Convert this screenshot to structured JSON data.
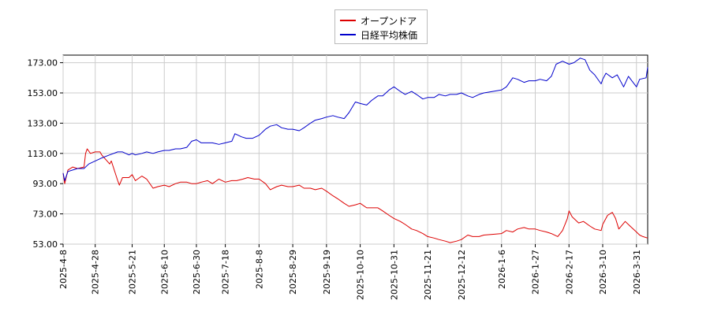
{
  "chart_data": {
    "type": "line",
    "title": "",
    "xlabel": "",
    "ylabel": "",
    "ylim": [
      53,
      178
    ],
    "yticks": [
      "173.00",
      "153.00",
      "133.00",
      "113.00",
      "93.00",
      "73.00",
      "53.00"
    ],
    "xticks": [
      "2025-4-8",
      "2025-4-28",
      "2025-5-21",
      "2025-6-10",
      "2025-6-30",
      "2025-7-18",
      "2025-8-8",
      "2025-8-29",
      "2025-9-19",
      "2025-10-10",
      "2025-10-31",
      "2025-11-21",
      "2025-12-12",
      "2026-1-6",
      "2026-1-27",
      "2026-2-17",
      "2026-3-10",
      "2026-3-31"
    ],
    "grid": true,
    "legend_position": "top-center",
    "series": [
      {
        "name": "オープンドア",
        "color": "#dd0000",
        "points": [
          [
            "2025-04-08",
            100
          ],
          [
            "2025-04-09",
            93
          ],
          [
            "2025-04-11",
            102
          ],
          [
            "2025-04-14",
            104
          ],
          [
            "2025-04-17",
            103
          ],
          [
            "2025-04-21",
            104
          ],
          [
            "2025-04-22",
            113
          ],
          [
            "2025-04-23",
            116
          ],
          [
            "2025-04-25",
            113
          ],
          [
            "2025-04-28",
            114
          ],
          [
            "2025-05-01",
            114
          ],
          [
            "2025-05-02",
            112
          ],
          [
            "2025-05-07",
            106
          ],
          [
            "2025-05-08",
            108
          ],
          [
            "2025-05-12",
            95
          ],
          [
            "2025-05-13",
            92
          ],
          [
            "2025-05-15",
            97
          ],
          [
            "2025-05-19",
            97
          ],
          [
            "2025-05-21",
            99
          ],
          [
            "2025-05-23",
            95
          ],
          [
            "2025-05-27",
            98
          ],
          [
            "2025-05-30",
            96
          ],
          [
            "2025-06-03",
            90
          ],
          [
            "2025-06-06",
            91
          ],
          [
            "2025-06-10",
            92
          ],
          [
            "2025-06-13",
            91
          ],
          [
            "2025-06-17",
            93
          ],
          [
            "2025-06-20",
            94
          ],
          [
            "2025-06-24",
            94
          ],
          [
            "2025-06-27",
            93
          ],
          [
            "2025-06-30",
            93
          ],
          [
            "2025-07-03",
            94
          ],
          [
            "2025-07-07",
            95
          ],
          [
            "2025-07-10",
            93
          ],
          [
            "2025-07-14",
            96
          ],
          [
            "2025-07-18",
            94
          ],
          [
            "2025-07-22",
            95
          ],
          [
            "2025-07-25",
            95
          ],
          [
            "2025-07-29",
            96
          ],
          [
            "2025-08-01",
            97
          ],
          [
            "2025-08-05",
            96
          ],
          [
            "2025-08-08",
            96
          ],
          [
            "2025-08-12",
            93
          ],
          [
            "2025-08-15",
            89
          ],
          [
            "2025-08-19",
            91
          ],
          [
            "2025-08-22",
            92
          ],
          [
            "2025-08-26",
            91
          ],
          [
            "2025-08-29",
            91
          ],
          [
            "2025-09-02",
            92
          ],
          [
            "2025-09-05",
            90
          ],
          [
            "2025-09-09",
            90
          ],
          [
            "2025-09-12",
            89
          ],
          [
            "2025-09-16",
            90
          ],
          [
            "2025-09-19",
            88
          ],
          [
            "2025-09-23",
            85
          ],
          [
            "2025-09-26",
            83
          ],
          [
            "2025-09-30",
            80
          ],
          [
            "2025-10-03",
            78
          ],
          [
            "2025-10-07",
            79
          ],
          [
            "2025-10-10",
            80
          ],
          [
            "2025-10-14",
            77
          ],
          [
            "2025-10-17",
            77
          ],
          [
            "2025-10-21",
            77
          ],
          [
            "2025-10-24",
            75
          ],
          [
            "2025-10-28",
            72
          ],
          [
            "2025-10-31",
            70
          ],
          [
            "2025-11-04",
            68
          ],
          [
            "2025-11-07",
            66
          ],
          [
            "2025-11-11",
            63
          ],
          [
            "2025-11-14",
            62
          ],
          [
            "2025-11-18",
            60
          ],
          [
            "2025-11-21",
            58
          ],
          [
            "2025-11-25",
            57
          ],
          [
            "2025-11-28",
            56
          ],
          [
            "2025-12-02",
            55
          ],
          [
            "2025-12-05",
            54
          ],
          [
            "2025-12-09",
            55
          ],
          [
            "2025-12-12",
            56
          ],
          [
            "2025-12-16",
            59
          ],
          [
            "2025-12-19",
            58
          ],
          [
            "2025-12-23",
            58
          ],
          [
            "2025-12-26",
            59
          ],
          [
            "2026-01-06",
            60
          ],
          [
            "2026-01-09",
            62
          ],
          [
            "2026-01-13",
            61
          ],
          [
            "2026-01-16",
            63
          ],
          [
            "2026-01-20",
            64
          ],
          [
            "2026-01-23",
            63
          ],
          [
            "2026-01-27",
            63
          ],
          [
            "2026-01-30",
            62
          ],
          [
            "2026-02-03",
            61
          ],
          [
            "2026-02-06",
            60
          ],
          [
            "2026-02-10",
            58
          ],
          [
            "2026-02-13",
            62
          ],
          [
            "2026-02-16",
            70
          ],
          [
            "2026-02-17",
            75
          ],
          [
            "2026-02-19",
            71
          ],
          [
            "2026-02-23",
            67
          ],
          [
            "2026-02-26",
            68
          ],
          [
            "2026-03-02",
            65
          ],
          [
            "2026-03-05",
            63
          ],
          [
            "2026-03-09",
            62
          ],
          [
            "2026-03-10",
            66
          ],
          [
            "2026-03-13",
            72
          ],
          [
            "2026-03-16",
            74
          ],
          [
            "2026-03-18",
            70
          ],
          [
            "2026-03-20",
            63
          ],
          [
            "2026-03-24",
            68
          ],
          [
            "2026-03-27",
            65
          ],
          [
            "2026-03-31",
            61
          ],
          [
            "2026-04-02",
            59
          ],
          [
            "2026-04-04",
            58
          ],
          [
            "2026-04-07",
            57
          ]
        ]
      },
      {
        "name": "日経平均株価",
        "color": "#0000cc",
        "points": [
          [
            "2025-04-08",
            100
          ],
          [
            "2025-04-09",
            95
          ],
          [
            "2025-04-11",
            101
          ],
          [
            "2025-04-14",
            102
          ],
          [
            "2025-04-17",
            103
          ],
          [
            "2025-04-21",
            103
          ],
          [
            "2025-04-24",
            106
          ],
          [
            "2025-04-28",
            108
          ],
          [
            "2025-05-02",
            110
          ],
          [
            "2025-05-07",
            112
          ],
          [
            "2025-05-12",
            114
          ],
          [
            "2025-05-15",
            114
          ],
          [
            "2025-05-19",
            112
          ],
          [
            "2025-05-21",
            113
          ],
          [
            "2025-05-23",
            112
          ],
          [
            "2025-05-27",
            113
          ],
          [
            "2025-05-30",
            114
          ],
          [
            "2025-06-03",
            113
          ],
          [
            "2025-06-06",
            114
          ],
          [
            "2025-06-10",
            115
          ],
          [
            "2025-06-13",
            115
          ],
          [
            "2025-06-17",
            116
          ],
          [
            "2025-06-20",
            116
          ],
          [
            "2025-06-24",
            117
          ],
          [
            "2025-06-27",
            121
          ],
          [
            "2025-06-30",
            122
          ],
          [
            "2025-07-03",
            120
          ],
          [
            "2025-07-07",
            120
          ],
          [
            "2025-07-10",
            120
          ],
          [
            "2025-07-14",
            119
          ],
          [
            "2025-07-18",
            120
          ],
          [
            "2025-07-22",
            121
          ],
          [
            "2025-07-24",
            126
          ],
          [
            "2025-07-28",
            124
          ],
          [
            "2025-07-31",
            123
          ],
          [
            "2025-08-04",
            123
          ],
          [
            "2025-08-08",
            125
          ],
          [
            "2025-08-12",
            129
          ],
          [
            "2025-08-15",
            131
          ],
          [
            "2025-08-19",
            132
          ],
          [
            "2025-08-22",
            130
          ],
          [
            "2025-08-26",
            129
          ],
          [
            "2025-08-29",
            129
          ],
          [
            "2025-09-02",
            128
          ],
          [
            "2025-09-05",
            130
          ],
          [
            "2025-09-09",
            133
          ],
          [
            "2025-09-12",
            135
          ],
          [
            "2025-09-16",
            136
          ],
          [
            "2025-09-19",
            137
          ],
          [
            "2025-09-23",
            138
          ],
          [
            "2025-09-26",
            137
          ],
          [
            "2025-09-30",
            136
          ],
          [
            "2025-10-03",
            140
          ],
          [
            "2025-10-07",
            147
          ],
          [
            "2025-10-10",
            146
          ],
          [
            "2025-10-14",
            145
          ],
          [
            "2025-10-17",
            148
          ],
          [
            "2025-10-21",
            151
          ],
          [
            "2025-10-24",
            151
          ],
          [
            "2025-10-28",
            155
          ],
          [
            "2025-10-31",
            157
          ],
          [
            "2025-11-04",
            154
          ],
          [
            "2025-11-07",
            152
          ],
          [
            "2025-11-11",
            154
          ],
          [
            "2025-11-14",
            152
          ],
          [
            "2025-11-18",
            149
          ],
          [
            "2025-11-21",
            150
          ],
          [
            "2025-11-25",
            150
          ],
          [
            "2025-11-28",
            152
          ],
          [
            "2025-12-02",
            151
          ],
          [
            "2025-12-05",
            152
          ],
          [
            "2025-12-09",
            152
          ],
          [
            "2025-12-12",
            153
          ],
          [
            "2025-12-16",
            151
          ],
          [
            "2025-12-19",
            150
          ],
          [
            "2025-12-23",
            152
          ],
          [
            "2025-12-26",
            153
          ],
          [
            "2026-01-06",
            155
          ],
          [
            "2026-01-09",
            157
          ],
          [
            "2026-01-13",
            163
          ],
          [
            "2026-01-16",
            162
          ],
          [
            "2026-01-20",
            160
          ],
          [
            "2026-01-23",
            161
          ],
          [
            "2026-01-27",
            161
          ],
          [
            "2026-01-30",
            162
          ],
          [
            "2026-02-03",
            161
          ],
          [
            "2026-02-06",
            164
          ],
          [
            "2026-02-09",
            172
          ],
          [
            "2026-02-13",
            174
          ],
          [
            "2026-02-17",
            172
          ],
          [
            "2026-02-20",
            173
          ],
          [
            "2026-02-24",
            176
          ],
          [
            "2026-02-27",
            175
          ],
          [
            "2026-03-02",
            168
          ],
          [
            "2026-03-05",
            165
          ],
          [
            "2026-03-09",
            159
          ],
          [
            "2026-03-10",
            162
          ],
          [
            "2026-03-12",
            166
          ],
          [
            "2026-03-16",
            163
          ],
          [
            "2026-03-19",
            165
          ],
          [
            "2026-03-23",
            157
          ],
          [
            "2026-03-26",
            164
          ],
          [
            "2026-03-31",
            157
          ],
          [
            "2026-04-02",
            162
          ],
          [
            "2026-04-06",
            163
          ],
          [
            "2026-04-07",
            170
          ]
        ]
      }
    ]
  }
}
